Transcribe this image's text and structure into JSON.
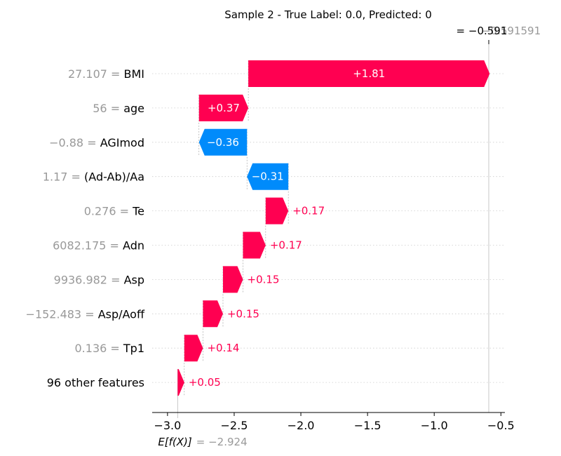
{
  "chart_data": {
    "type": "waterfall",
    "title": "Sample 2 - True Label: 0.0, Predicted: 0",
    "base_value": -2.924,
    "base_value_label_prefix": "E[f(X)]",
    "base_value_label_value": "= −2.924",
    "output_value": -0.591,
    "output_label_prefix": "= ",
    "output_label_value": "−0.591",
    "output_label_overlap_value": "−0.591591",
    "features": [
      {
        "name": "BMI",
        "value_text": "27.107",
        "contribution": 1.81,
        "label": "+1.81"
      },
      {
        "name": "age",
        "value_text": "56",
        "contribution": 0.37,
        "label": "+0.37"
      },
      {
        "name": "AGImod",
        "value_text": "−0.88",
        "contribution": -0.36,
        "label": "−0.36"
      },
      {
        "name": "(Ad-Ab)/Aa",
        "value_text": "1.17",
        "contribution": -0.31,
        "label": "−0.31"
      },
      {
        "name": "Te",
        "value_text": "0.276",
        "contribution": 0.17,
        "label": "+0.17"
      },
      {
        "name": "Adn",
        "value_text": "6082.175",
        "contribution": 0.17,
        "label": "+0.17"
      },
      {
        "name": "Asp",
        "value_text": "9936.982",
        "contribution": 0.15,
        "label": "+0.15"
      },
      {
        "name": "Asp/Aoff",
        "value_text": "−152.483",
        "contribution": 0.15,
        "label": "+0.15"
      },
      {
        "name": "Tp1",
        "value_text": "0.136",
        "contribution": 0.14,
        "label": "+0.14"
      },
      {
        "name": "96 other features",
        "value_text": "",
        "contribution": 0.05,
        "label": "+0.05"
      }
    ],
    "x_ticks": [
      -3.0,
      -2.5,
      -2.0,
      -1.5,
      -1.0,
      -0.5
    ],
    "x_tick_labels": [
      "−3.0",
      "−2.5",
      "−2.0",
      "−1.5",
      "−1.0",
      "−0.5"
    ],
    "xlim": [
      -3.115,
      -0.47
    ],
    "colors": {
      "positive": "#ff0051",
      "negative": "#008bfb",
      "feature_value": "#999999",
      "feature_name": "#000000"
    }
  }
}
